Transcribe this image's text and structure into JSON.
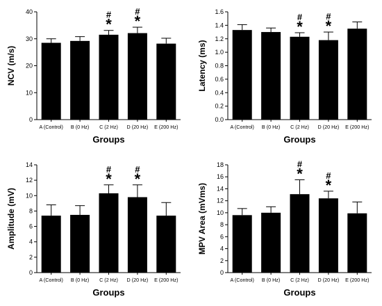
{
  "chart_data": [
    {
      "type": "bar",
      "categories": [
        "A (Control)",
        "B (0 Hz)",
        "C (2 Hz)",
        "D (20 Hz)",
        "E (200 Hz)"
      ],
      "values": [
        28.5,
        29.2,
        31.5,
        32.1,
        28.2
      ],
      "errors": [
        1.5,
        1.6,
        1.6,
        2.2,
        2.0
      ],
      "annotations": [
        "",
        "",
        "#*",
        "#*",
        ""
      ],
      "xlabel": "Groups",
      "ylabel": "NCV (m/s)",
      "ylim": [
        0,
        40
      ],
      "yticks": [
        0,
        10,
        20,
        30,
        40
      ],
      "ytick_labels": [
        "0",
        "10",
        "20",
        "30",
        "40"
      ]
    },
    {
      "type": "bar",
      "categories": [
        "A (Control)",
        "B (0 Hz)",
        "C (2 Hz)",
        "D (20 Hz)",
        "E (200 Hz)"
      ],
      "values": [
        1.33,
        1.3,
        1.23,
        1.18,
        1.35
      ],
      "errors": [
        0.08,
        0.06,
        0.06,
        0.12,
        0.1
      ],
      "annotations": [
        "",
        "",
        "#*",
        "#*",
        ""
      ],
      "xlabel": "Groups",
      "ylabel": "Latency (ms)",
      "ylim": [
        0,
        1.6
      ],
      "yticks": [
        0,
        0.2,
        0.4,
        0.6,
        0.8,
        1.0,
        1.2,
        1.4,
        1.6
      ],
      "ytick_labels": [
        "0.0",
        "0.2",
        "0.4",
        "0.6",
        "0.8",
        "1.0",
        "1.2",
        "1.4",
        "1.6"
      ]
    },
    {
      "type": "bar",
      "categories": [
        "A (Control)",
        "B (0 Hz)",
        "C (2 Hz)",
        "D (20 Hz)",
        "E (200 Hz)"
      ],
      "values": [
        7.4,
        7.5,
        10.3,
        9.8,
        7.4
      ],
      "errors": [
        1.4,
        1.2,
        1.1,
        1.6,
        1.7
      ],
      "annotations": [
        "",
        "",
        "#*",
        "#*",
        ""
      ],
      "xlabel": "Groups",
      "ylabel": "Amplitude (mV)",
      "ylim": [
        0,
        14
      ],
      "yticks": [
        0,
        2,
        4,
        6,
        8,
        10,
        12,
        14
      ],
      "ytick_labels": [
        "0",
        "2",
        "4",
        "6",
        "8",
        "10",
        "12",
        "14"
      ]
    },
    {
      "type": "bar",
      "categories": [
        "A (Control)",
        "B (0 Hz)",
        "C (2 Hz)",
        "D (20 Hz)",
        "E (200 Hz)"
      ],
      "values": [
        9.6,
        10.0,
        13.1,
        12.4,
        9.9
      ],
      "errors": [
        1.1,
        1.0,
        2.4,
        1.2,
        1.9
      ],
      "annotations": [
        "",
        "",
        "#*",
        "#*",
        ""
      ],
      "xlabel": "Groups",
      "ylabel": "MPV Area (mVms)",
      "ylim": [
        0,
        18
      ],
      "yticks": [
        0,
        2,
        4,
        6,
        8,
        10,
        12,
        14,
        16,
        18
      ],
      "ytick_labels": [
        "0",
        "2",
        "4",
        "6",
        "8",
        "10",
        "12",
        "14",
        "16",
        "18"
      ]
    }
  ]
}
